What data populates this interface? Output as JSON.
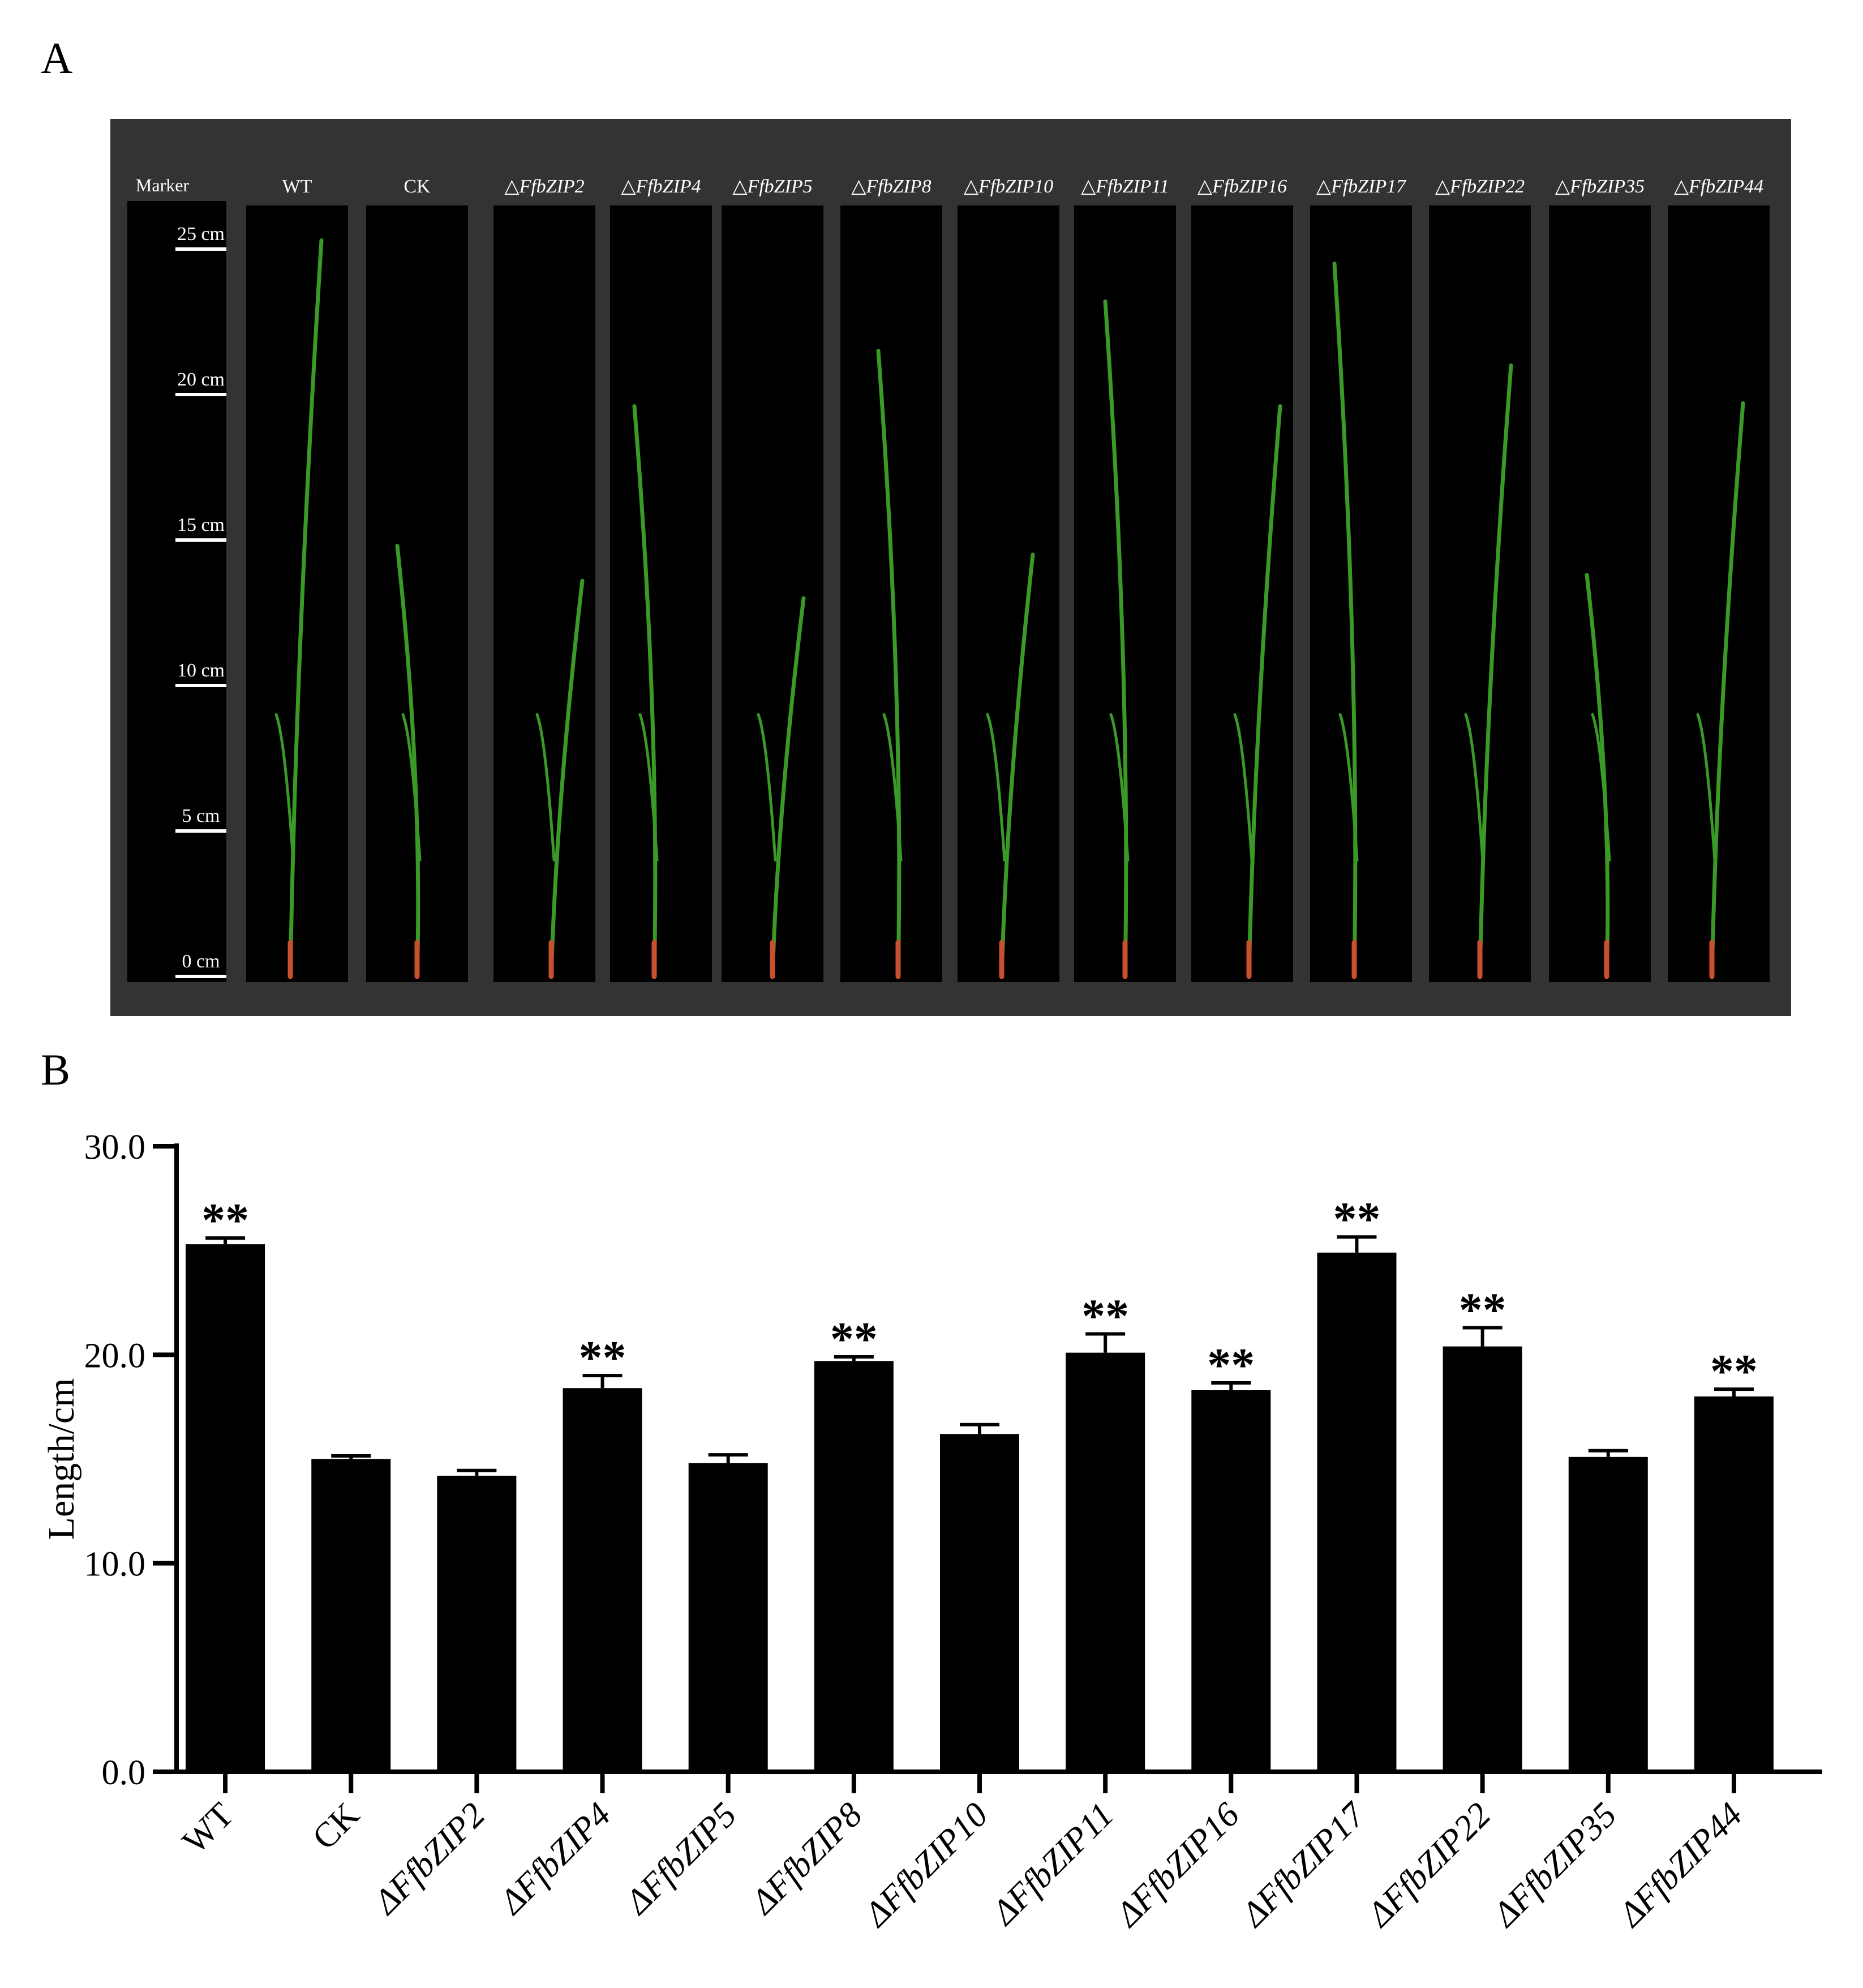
{
  "panels": {
    "a": "A",
    "b": "B"
  },
  "photo": {
    "marker_label": "Marker",
    "scale_labels": [
      "25 cm",
      "20 cm",
      "15 cm",
      "10 cm",
      "5 cm",
      "0 cm"
    ],
    "scale_values": [
      25,
      20,
      15,
      10,
      5,
      0
    ],
    "lane_labels": [
      "WT",
      "CK",
      "△FfbZIP2",
      "△FfbZIP4",
      "△FfbZIP5",
      "△FfbZIP8",
      "△FfbZIP10",
      "△FfbZIP11",
      "△FfbZIP16",
      "△FfbZIP17",
      "△FfbZIP22",
      "△FfbZIP35",
      "△FfbZIP44"
    ],
    "plant_heights_cm": [
      25.3,
      14.8,
      13.6,
      19.6,
      13.0,
      21.5,
      14.5,
      23.2,
      19.6,
      24.5,
      21.0,
      13.8,
      19.7
    ],
    "colors": {
      "frame": "#333333",
      "lane": "#000000",
      "leaf": "#3a9a28",
      "root": "#c9502f"
    }
  },
  "chart_data": {
    "type": "bar",
    "categories": [
      "WT",
      "CK",
      "ΔFfbZIP2",
      "ΔFfbZIP4",
      "ΔFfbZIP5",
      "ΔFfbZIP8",
      "ΔFfbZIP10",
      "ΔFfbZIP11",
      "ΔFfbZIP16",
      "ΔFfbZIP17",
      "ΔFfbZIP22",
      "ΔFfbZIP35",
      "ΔFfbZIP44"
    ],
    "values": [
      25.3,
      15.0,
      14.2,
      18.4,
      14.8,
      19.7,
      16.2,
      20.1,
      18.3,
      24.9,
      20.4,
      15.1,
      18.0
    ],
    "errors": [
      0.3,
      0.15,
      0.25,
      0.6,
      0.4,
      0.2,
      0.45,
      0.9,
      0.35,
      0.75,
      0.9,
      0.3,
      0.35
    ],
    "significance": [
      "**",
      "",
      "",
      "**",
      "",
      "**",
      "",
      "**",
      "**",
      "**",
      "**",
      "",
      "**"
    ],
    "ylabel": "Length/cm",
    "ylim": [
      0,
      30
    ],
    "yticks": [
      "0.0",
      "10.0",
      "20.0",
      "30.0"
    ],
    "ytick_values": [
      0,
      10,
      20,
      30
    ],
    "grid": false,
    "bar_color": "#000000"
  }
}
